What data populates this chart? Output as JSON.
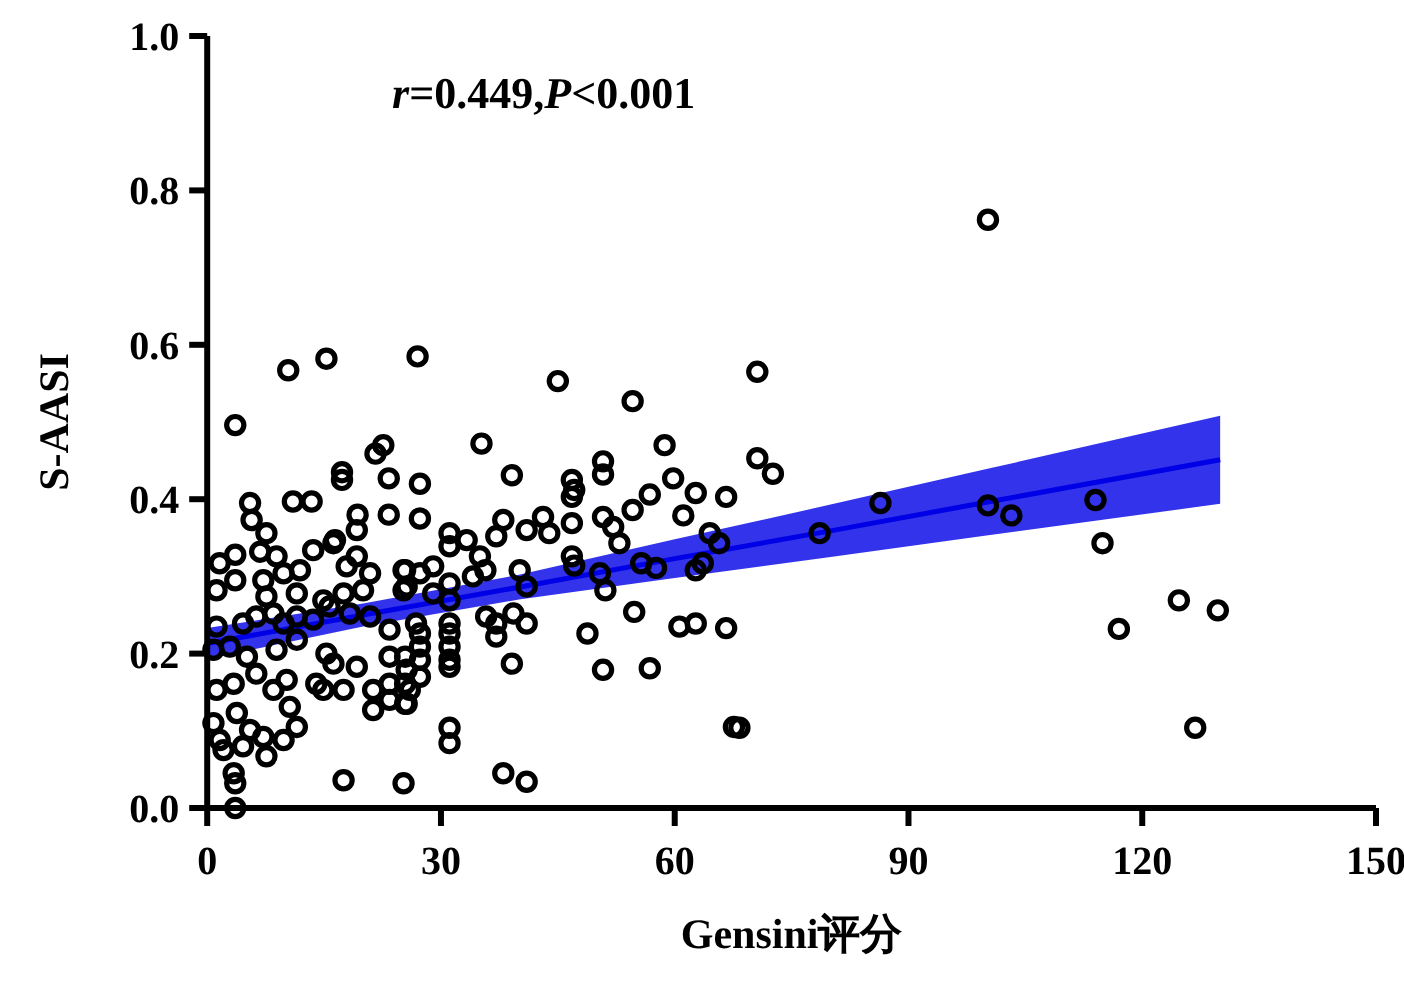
{
  "chart_data": {
    "type": "scatter",
    "xlabel": "Gensini评分",
    "ylabel": "S-AASI",
    "annotations": [
      "*r*=0.449,*P*<0.001"
    ],
    "xlim": [
      0,
      150
    ],
    "ylim": [
      0,
      1
    ],
    "xticks": [
      0,
      30,
      60,
      90,
      120,
      150
    ],
    "yticks": [
      {
        "value": 0,
        "label": "0.0"
      },
      {
        "value": 0.2,
        "label": "0.2"
      },
      {
        "value": 0.4,
        "label": "0.4"
      },
      {
        "value": 0.6,
        "label": "0.6"
      },
      {
        "value": 0.8,
        "label": "0.8"
      },
      {
        "value": 1,
        "label": "1.0"
      }
    ],
    "series": [
      {
        "marker": "circle",
        "color": "#000000",
        "x": [
          100.2,
          70.6,
          70.6,
          72.6,
          78.6,
          86.4,
          100.2,
          103.2,
          114,
          114.9,
          117,
          124.7,
          129.7,
          126.8,
          68.3,
          3.6,
          10.4,
          15.3,
          27.0,
          45,
          54.6,
          21.6,
          22.6,
          17.3,
          17.3,
          23.3,
          27.3,
          5.5,
          5.7,
          11,
          13.4,
          19.3,
          23.3,
          27.3,
          7.6,
          16.4,
          19.2,
          1.6,
          3.6,
          6.8,
          8.9,
          13.6,
          11.9,
          16.2,
          17.9,
          19.2,
          20.9,
          25.2,
          27.3,
          1.2,
          3.6,
          7.2,
          9.8,
          7.6,
          11.5,
          14.9,
          17.5,
          20,
          25.2,
          1.2,
          4.6,
          6.3,
          8.5,
          9.8,
          11.5,
          13.6,
          15.7,
          18.3,
          20.9,
          23.4,
          26.8,
          0.8,
          2.9,
          5.1,
          8.9,
          11.5,
          15.3,
          16.2,
          19.2,
          23.4,
          25.6,
          1.2,
          3.4,
          6.3,
          8.5,
          10.2,
          10.6,
          14,
          14.9,
          17.5,
          21.3,
          23.4,
          26,
          21.3,
          23.4,
          25.6,
          0.8,
          1.6,
          3.8,
          5.5,
          2.1,
          4.6,
          7.2,
          7.6,
          9.8,
          11.5,
          3.4,
          3.6,
          3.6,
          17.5,
          25.2,
          35.2,
          39.1,
          46.8,
          46.8,
          47.1,
          50.8,
          50.8,
          58.7,
          59.8,
          56.8,
          54.6,
          62.7,
          66.6,
          61.1,
          31.1,
          33.3,
          31.1,
          38,
          37.1,
          41,
          43.1,
          43.9,
          46.8,
          50.8,
          52.1,
          52.9,
          35,
          35.7,
          34.1,
          40.1,
          46.8,
          47.1,
          55.7,
          57.6,
          64.5,
          65.7,
          62.7,
          63.6,
          50.4,
          51.1,
          41,
          25.4,
          29,
          25.6,
          29,
          31.1,
          31.1,
          35.8,
          37.1,
          39.3,
          41,
          31.1,
          31.1,
          31.1,
          31.1,
          31.1,
          37.1,
          39.1,
          48.8,
          54.8,
          60.6,
          62.7,
          66.6,
          50.8,
          56.8,
          67.6,
          31.1,
          31.1,
          38,
          41,
          27.3,
          27.3,
          25.4,
          27.3,
          27.3,
          25.4,
          25.4
        ],
        "values": [
          0.762,
          0.565,
          0.453,
          0.433,
          0.356,
          0.395,
          0.392,
          0.379,
          0.399,
          0.343,
          0.232,
          0.269,
          0.256,
          0.104,
          0.104,
          0.496,
          0.567,
          0.582,
          0.585,
          0.553,
          0.527,
          0.459,
          0.47,
          0.435,
          0.425,
          0.427,
          0.42,
          0.395,
          0.373,
          0.397,
          0.397,
          0.38,
          0.38,
          0.375,
          0.356,
          0.347,
          0.36,
          0.317,
          0.328,
          0.332,
          0.326,
          0.334,
          0.308,
          0.343,
          0.313,
          0.326,
          0.304,
          0.308,
          0.304,
          0.282,
          0.295,
          0.295,
          0.304,
          0.274,
          0.278,
          0.269,
          0.278,
          0.282,
          0.282,
          0.235,
          0.239,
          0.248,
          0.252,
          0.239,
          0.248,
          0.244,
          0.261,
          0.252,
          0.248,
          0.231,
          0.239,
          0.205,
          0.209,
          0.196,
          0.205,
          0.218,
          0.2,
          0.187,
          0.183,
          0.196,
          0.179,
          0.153,
          0.161,
          0.174,
          0.153,
          0.166,
          0.131,
          0.161,
          0.153,
          0.153,
          0.153,
          0.161,
          0.153,
          0.127,
          0.14,
          0.135,
          0.11,
          0.088,
          0.123,
          0.101,
          0.075,
          0.08,
          0.092,
          0.067,
          0.088,
          0.105,
          0.045,
          0.032,
          0.0,
          0.036,
          0.032,
          0.472,
          0.431,
          0.425,
          0.403,
          0.412,
          0.449,
          0.432,
          0.47,
          0.427,
          0.406,
          0.386,
          0.408,
          0.403,
          0.379,
          0.356,
          0.347,
          0.339,
          0.373,
          0.352,
          0.36,
          0.377,
          0.356,
          0.369,
          0.377,
          0.364,
          0.343,
          0.326,
          0.308,
          0.3,
          0.308,
          0.326,
          0.314,
          0.317,
          0.311,
          0.356,
          0.343,
          0.308,
          0.317,
          0.304,
          0.282,
          0.287,
          0.308,
          0.313,
          0.287,
          0.278,
          0.291,
          0.269,
          0.248,
          0.239,
          0.252,
          0.239,
          0.239,
          0.226,
          0.209,
          0.192,
          0.183,
          0.222,
          0.187,
          0.226,
          0.254,
          0.235,
          0.239,
          0.233,
          0.179,
          0.181,
          0.105,
          0.084,
          0.104,
          0.045,
          0.034,
          0.226,
          0.209,
          0.196,
          0.192,
          0.17,
          0.161,
          0.135
        ]
      },
      {
        "type": "line",
        "marker": "none",
        "color": "#0000e6",
        "x": [
          0,
          20,
          40,
          60,
          80,
          100,
          130
        ],
        "values": [
          0.213,
          0.25,
          0.286,
          0.323,
          0.359,
          0.396,
          0.451
        ],
        "lower": [
          0.193,
          0.235,
          0.27,
          0.298,
          0.325,
          0.353,
          0.394
        ],
        "upper": [
          0.233,
          0.265,
          0.302,
          0.348,
          0.393,
          0.439,
          0.508
        ]
      }
    ]
  }
}
